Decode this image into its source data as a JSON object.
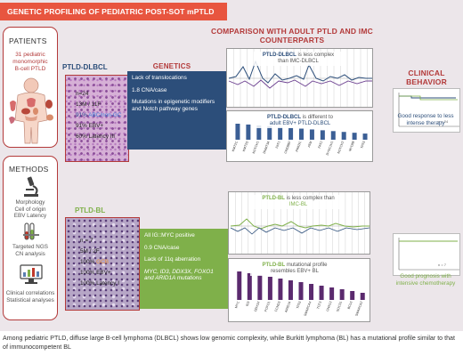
{
  "banner": "GENETIC PROFILING OF PEDIATRIC POST-SOT mPTLD",
  "left": {
    "patients_title": "PATIENTS",
    "patients_desc": [
      "31 pediatric",
      "monomorphic",
      "B-cell PTLD"
    ],
    "methods_title": "METHODS",
    "methods_items": [
      [
        "Morphology",
        "Cell of origin",
        "EBV Latency"
      ],
      [
        "Targeted NGS",
        "CN analysis"
      ],
      [
        "Clinical correlations",
        "Statistical analyses"
      ]
    ]
  },
  "dlbcl": {
    "label": "PTLD-DLBCL",
    "stats": [
      "n=24",
      "13M / 11F",
      "91% ABC/non-GC",
      "91% EBV+",
      "60% Latency III"
    ],
    "genetics": [
      "Lack of translocations",
      "1.8 CNA/case",
      "Mutations in epigenetic modifiers and Notch pathway genes"
    ],
    "cn_caption_a": "PTLD-DLBCL",
    "cn_caption_b": " is less complex",
    "cn_caption_c": "than IMC-DLBCL",
    "mut_caption_a": "PTLD-DLBCL",
    "mut_caption_b": " is different to",
    "mut_caption_c": "adult EBV+ PTLD-DLBCL",
    "genes": [
      "KMT2C",
      "KMT2D",
      "NOTCH1",
      "DNMT3A",
      "FAT1",
      "CREBBP",
      "PRKDC",
      "ATM",
      "FAT2",
      "DYNC1H1",
      "NOTCH2",
      "MYD88",
      "TP53"
    ],
    "outcome": [
      "Good response to less",
      "intense therapy"
    ],
    "surv_note": "n = 24"
  },
  "bl": {
    "label": "PTLD-BL",
    "stats": [
      "n = 7",
      "5M / 2F",
      "100% GCB",
      "100% EBV+",
      "100% Latency I"
    ],
    "genetics": [
      "All IG::MYC positive",
      "0.9 CNA/case",
      "Lack of 11q aberration",
      "MYC, ID3, DDX3X, FOXO1 and ARID1A mutations"
    ],
    "cn_caption_a": "PTLD-BL",
    "cn_caption_b": " is less complex than",
    "cn_caption_c": "IMC-BL",
    "mut_caption_a": "PTLD-BL",
    "mut_caption_b": " mutational profile",
    "mut_caption_c": "resembles EBV+ BL",
    "genes": [
      "MYC",
      "ID3",
      "DDX3X",
      "FOXO1",
      "CCND3",
      "ARID1A",
      "TP53",
      "SMARCA4",
      "TCF3",
      "GNA13",
      "SOCS1",
      "BCL6",
      "SMARCA2"
    ],
    "outcome": [
      "Good prognosis with",
      "intensive chemotherapy"
    ],
    "surv_note": "n = 7"
  },
  "headers": {
    "genetics": "GENETICS",
    "comparison": [
      "COMPARISON WITH ADULT PTLD AND IMC",
      "COUNTERPARTS"
    ],
    "clinical": [
      "CLINICAL",
      "BEHAVIOR"
    ]
  },
  "footer": "Among pediatric PTLD, diffuse large B-cell lymphoma (DLBCL) shows low genomic complexity, while Burkitt lymphoma (BL) has a mutational profile similar to that of immunocompetent BL",
  "colors": {
    "banner": "#e8553f",
    "dlbcl_accent": "#2c4e7a",
    "bl_accent": "#7fb04a",
    "mutation_bar": "#5b2a6e",
    "red_text": "#b33a3a"
  }
}
